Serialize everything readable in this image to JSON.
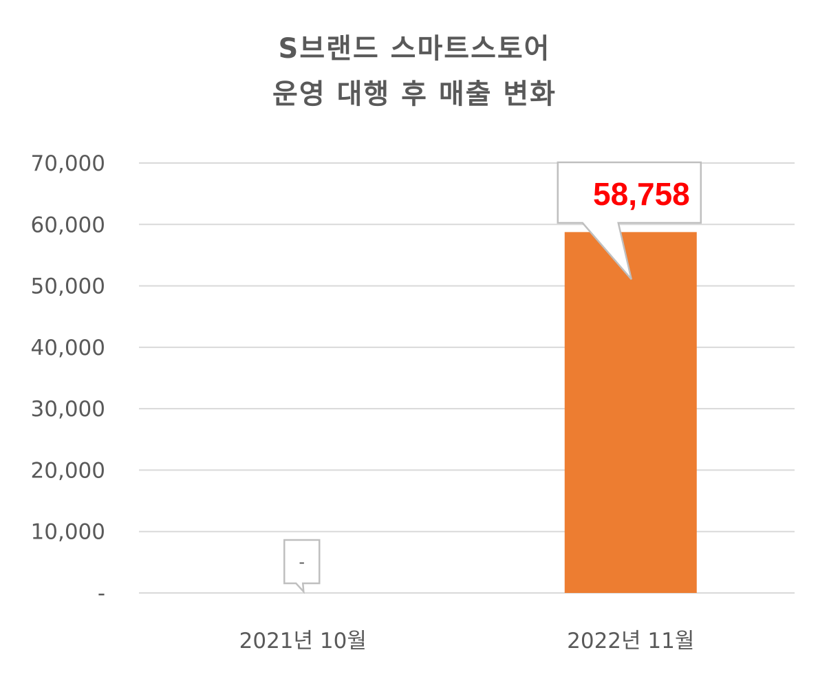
{
  "colors": {
    "bar": "#ED7D31",
    "grid": "#D9D9D9",
    "text": "#595959",
    "highlight_label": "#FF0000",
    "callout_border": "#BFBFBF"
  },
  "chart_data": {
    "type": "bar",
    "title_lines": [
      "S브랜드 스마트스토어",
      "운영 대행 후 매출 변화"
    ],
    "categories": [
      "2021년 10월",
      "2022년 11월"
    ],
    "series": [
      {
        "values": [
          0,
          58758
        ]
      }
    ],
    "data_labels": [
      "-",
      "58,758"
    ],
    "ylim": [
      0,
      70000
    ],
    "yticks": [
      0,
      10000,
      20000,
      30000,
      40000,
      50000,
      60000,
      70000
    ],
    "ytick_labels": [
      "-",
      "10,000",
      "20,000",
      "30,000",
      "40,000",
      "50,000",
      "60,000",
      "70,000"
    ],
    "xlabel": "",
    "ylabel": "",
    "grid": true,
    "legend": false
  }
}
